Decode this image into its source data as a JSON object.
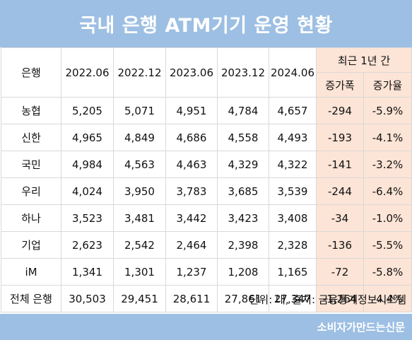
{
  "title": "국내 은행 ATM기기 운영 현황",
  "table": {
    "bank_header": "은행",
    "periods": [
      "2022.06",
      "2022.12",
      "2023.06",
      "2023.12",
      "2024.06"
    ],
    "change_group_header": "최근 1년 간",
    "change_headers": [
      "증가폭",
      "증가율"
    ],
    "rows": [
      {
        "bank": "농협",
        "values": [
          "5,205",
          "5,071",
          "4,951",
          "4,784",
          "4,657"
        ],
        "change": "-294",
        "rate": "-5.9%"
      },
      {
        "bank": "신한",
        "values": [
          "4,965",
          "4,849",
          "4,686",
          "4,558",
          "4,493"
        ],
        "change": "-193",
        "rate": "-4.1%"
      },
      {
        "bank": "국민",
        "values": [
          "4,984",
          "4,563",
          "4,463",
          "4,329",
          "4,322"
        ],
        "change": "-141",
        "rate": "-3.2%"
      },
      {
        "bank": "우리",
        "values": [
          "4,024",
          "3,950",
          "3,783",
          "3,685",
          "3,539"
        ],
        "change": "-244",
        "rate": "-6.4%"
      },
      {
        "bank": "하나",
        "values": [
          "3,523",
          "3,481",
          "3,442",
          "3,423",
          "3,408"
        ],
        "change": "-34",
        "rate": "-1.0%"
      },
      {
        "bank": "기업",
        "values": [
          "2,623",
          "2,542",
          "2,464",
          "2,398",
          "2,328"
        ],
        "change": "-136",
        "rate": "-5.5%"
      },
      {
        "bank": "iM",
        "values": [
          "1,341",
          "1,301",
          "1,237",
          "1,208",
          "1,165"
        ],
        "change": "-72",
        "rate": "-5.8%"
      },
      {
        "bank": "전체 은행",
        "values": [
          "30,503",
          "29,451",
          "28,611",
          "27,861",
          "27,347"
        ],
        "change": "-1,264",
        "rate": "-4.4%"
      }
    ]
  },
  "footnote": "단위: 대, 출처: 금융통계정보시스템",
  "publisher": "소비자가만드는신문",
  "colors": {
    "banner": "#9dbfe3",
    "change_cells": "#fce4d6",
    "grid": "#d9d9d9"
  }
}
